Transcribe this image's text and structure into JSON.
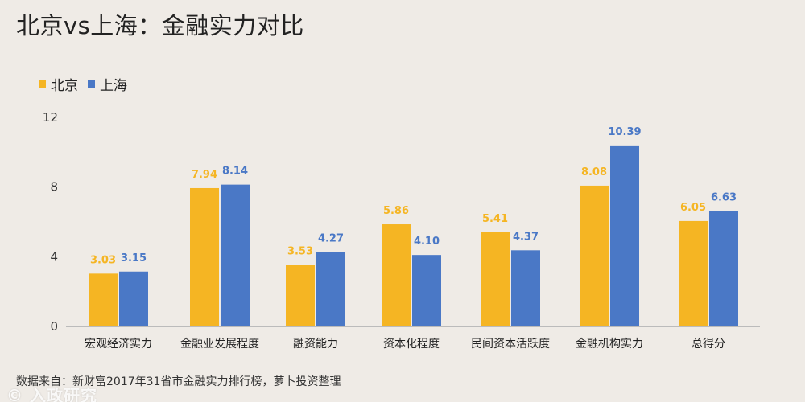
{
  "title": "北京vs上海：金融实力对比",
  "footer": "数据来自：新财富2017年31省市金融实力排行榜，萝卜投资整理",
  "watermark": "© 入政研究",
  "colors": {
    "background": "#efebe6",
    "beijing": "#f5b523",
    "shanghai": "#4a78c6",
    "axis": "#bbbbbb"
  },
  "chart_data": {
    "type": "bar",
    "title": "北京vs上海：金融实力对比",
    "xlabel": "",
    "ylabel": "",
    "ylim": [
      0,
      12
    ],
    "yticks": [
      0,
      4,
      8,
      12
    ],
    "grid": false,
    "legend_position": "top-left",
    "categories": [
      "宏观经济实力",
      "金融业发展程度",
      "融资能力",
      "资本化程度",
      "民间资本活跃度",
      "金融机构实力",
      "总得分"
    ],
    "series": [
      {
        "name": "北京",
        "color": "#f5b523",
        "values": [
          3.03,
          7.94,
          3.53,
          5.86,
          5.41,
          8.08,
          6.05
        ]
      },
      {
        "name": "上海",
        "color": "#4a78c6",
        "values": [
          3.15,
          8.14,
          4.27,
          4.1,
          4.37,
          10.39,
          6.63
        ]
      }
    ]
  }
}
